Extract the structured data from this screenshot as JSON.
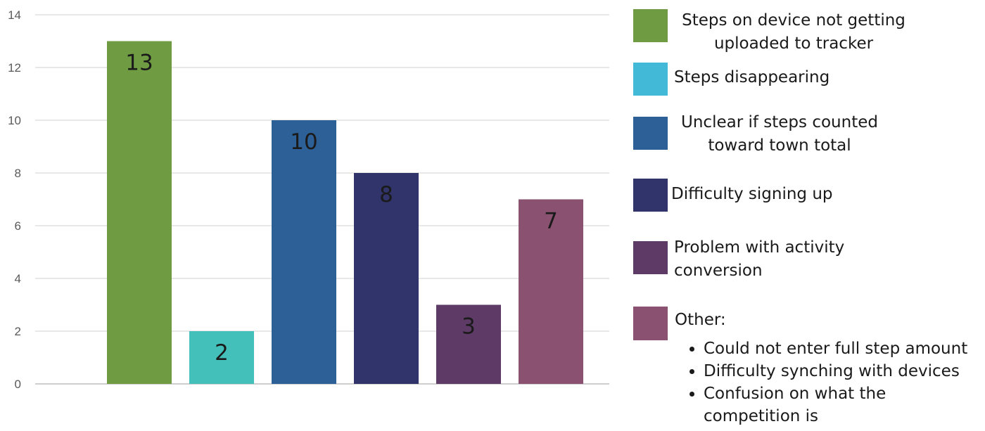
{
  "chart_data": {
    "type": "bar",
    "categories": [
      "Steps on device not getting uploaded to tracker",
      "Steps disappearing",
      "Unclear if steps counted toward town total",
      "Difficulty signing up",
      "Problem with activity conversion",
      "Other:"
    ],
    "values": [
      13,
      2,
      10,
      8,
      3,
      7
    ],
    "data_labels": [
      "13",
      "2",
      "10",
      "8",
      "3",
      "7"
    ],
    "colors": [
      "#6f9c42",
      "#42c0b9",
      "#2e6098",
      "#30346b",
      "#5e3a66",
      "#8a5270"
    ],
    "legend_colors": [
      "#6f9c42",
      "#43b9d8",
      "#2e6098",
      "#30346b",
      "#5e3a66",
      "#8a5270"
    ],
    "ylim": [
      0,
      14
    ],
    "yticks": [
      "0",
      "2",
      "4",
      "6",
      "8",
      "10",
      "12",
      "14"
    ],
    "grid": true,
    "legend_position": "right"
  },
  "legend": {
    "items": [
      {
        "line1": "Steps on device not getting",
        "line2": "uploaded to tracker"
      },
      {
        "line1": "Steps disappearing",
        "line2": ""
      },
      {
        "line1": "Unclear if steps counted",
        "line2": "toward town total"
      },
      {
        "line1": "Difficulty signing up",
        "line2": ""
      },
      {
        "line1": "Problem with activity",
        "line2": "conversion"
      },
      {
        "line1": "Other:",
        "line2": ""
      }
    ],
    "other_bullets": [
      "Could not enter full step amount",
      "Difficulty synching with devices",
      "Confusion on what the",
      "competition is"
    ]
  }
}
